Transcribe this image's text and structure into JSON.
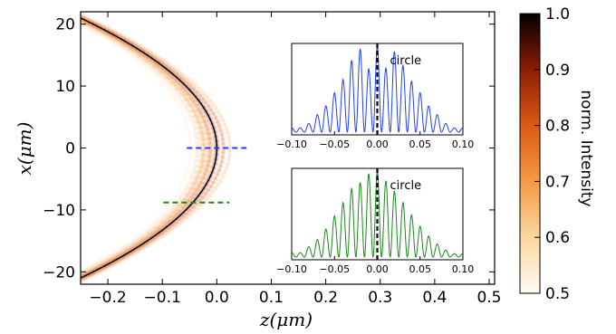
{
  "chart_data": {
    "type": "heatmap",
    "main": {
      "xlabel": "z(μm)",
      "ylabel": "x(μm)",
      "xlim": [
        -0.25,
        0.51
      ],
      "ylim": [
        -22,
        22
      ],
      "xticks": [
        -0.2,
        -0.1,
        0.0,
        0.1,
        0.2,
        0.3,
        0.4,
        0.5
      ],
      "xtick_labels": [
        "−0.2",
        "−0.1",
        "0.0",
        "0.1",
        "0.2",
        "0.3",
        "0.4",
        "0.5"
      ],
      "yticks": [
        20,
        10,
        0,
        -10,
        -20
      ],
      "ytick_labels": [
        "20",
        "10",
        "0",
        "−10",
        "−20"
      ],
      "curve": {
        "type": "parabola",
        "vertex_z": 0.0,
        "vertex_x": 0.0,
        "z_at_x_20": -0.227,
        "color": "#000000"
      },
      "cut_lines": [
        {
          "name": "blue",
          "x": 0.0,
          "z_range": [
            -0.055,
            0.06
          ],
          "color": "#1f3fff"
        },
        {
          "name": "green",
          "x": -8.8,
          "z_range": [
            -0.098,
            0.023
          ],
          "color": "#1a8a1a"
        }
      ]
    },
    "colorbar": {
      "label": "norm.  Intensity",
      "range": [
        0.5,
        1.0
      ],
      "ticks": [
        1.0,
        0.9,
        0.8,
        0.7,
        0.6,
        0.5
      ],
      "tick_labels": [
        "1.0",
        "0.9",
        "0.8",
        "0.7",
        "0.6",
        "0.5"
      ]
    },
    "insets": [
      {
        "title": "circle",
        "color": "#1f3fff",
        "xlim": [
          -0.1,
          0.1
        ],
        "xticks": [
          -0.1,
          -0.05,
          0.0,
          0.05,
          0.1
        ],
        "xtick_labels": [
          "−0.10",
          "−0.05",
          "0.00",
          "0.05",
          "0.10"
        ],
        "dashed_line_x": 0.0,
        "peaks": [
          0.05,
          0.1,
          0.2,
          0.3,
          0.45,
          0.6,
          0.82,
          0.95,
          0.72,
          0.98,
          0.73,
          0.92,
          0.76,
          0.58,
          0.45,
          0.3,
          0.2,
          0.1,
          0.05
        ]
      },
      {
        "title": "circle",
        "color": "#1a8a1a",
        "xlim": [
          -0.1,
          0.1
        ],
        "xticks": [
          -0.1,
          -0.05,
          0.0,
          0.05,
          0.1
        ],
        "xtick_labels": [
          "−0.10",
          "−0.05",
          "0.00",
          "0.05",
          "0.10"
        ],
        "dashed_line_x": 0.0,
        "peaks": [
          0.05,
          0.12,
          0.2,
          0.32,
          0.47,
          0.62,
          0.78,
          0.85,
          0.95,
          0.97,
          0.87,
          0.75,
          0.62,
          0.48,
          0.35,
          0.24,
          0.15,
          0.08,
          0.04
        ]
      }
    ]
  }
}
